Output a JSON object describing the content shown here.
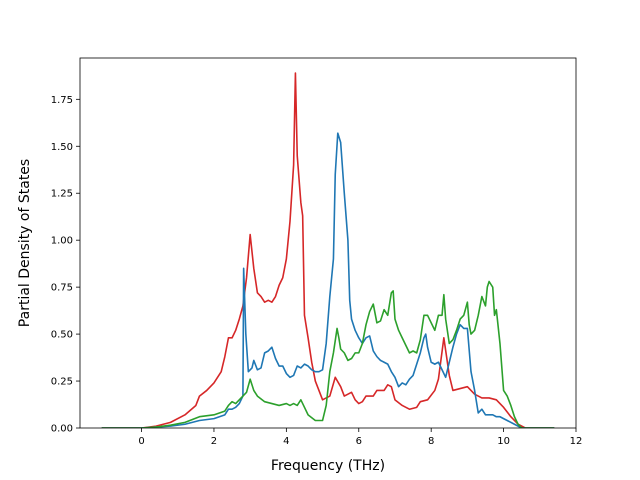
{
  "chart_data": {
    "type": "line",
    "title": "",
    "xlabel": "Frequency (THz)",
    "ylabel": "Partial Density of States",
    "xlim": [
      -1.7,
      12
    ],
    "ylim": [
      0,
      1.97
    ],
    "x_ticks": [
      0,
      2,
      4,
      6,
      8,
      10,
      12
    ],
    "x_tick_labels": [
      "0",
      "2",
      "4",
      "6",
      "8",
      "10",
      "12"
    ],
    "y_ticks": [
      0,
      0.25,
      0.5,
      0.75,
      1.0,
      1.25,
      1.5,
      1.75
    ],
    "y_tick_labels": [
      "0.00",
      "0.25",
      "0.50",
      "0.75",
      "1.00",
      "1.25",
      "1.50",
      "1.75"
    ],
    "grid": false,
    "legend": false,
    "series": [
      {
        "color": "#d62728",
        "points": [
          [
            -1.1,
            0
          ],
          [
            0,
            0
          ],
          [
            0.4,
            0.01
          ],
          [
            0.8,
            0.03
          ],
          [
            1.2,
            0.07
          ],
          [
            1.5,
            0.12
          ],
          [
            1.6,
            0.17
          ],
          [
            1.8,
            0.2
          ],
          [
            2.0,
            0.24
          ],
          [
            2.2,
            0.3
          ],
          [
            2.3,
            0.38
          ],
          [
            2.4,
            0.48
          ],
          [
            2.5,
            0.48
          ],
          [
            2.6,
            0.52
          ],
          [
            2.7,
            0.58
          ],
          [
            2.8,
            0.65
          ],
          [
            2.9,
            0.8
          ],
          [
            3.0,
            1.03
          ],
          [
            3.1,
            0.85
          ],
          [
            3.2,
            0.72
          ],
          [
            3.3,
            0.7
          ],
          [
            3.4,
            0.67
          ],
          [
            3.5,
            0.68
          ],
          [
            3.6,
            0.67
          ],
          [
            3.7,
            0.7
          ],
          [
            3.8,
            0.76
          ],
          [
            3.9,
            0.8
          ],
          [
            4.0,
            0.9
          ],
          [
            4.1,
            1.1
          ],
          [
            4.2,
            1.4
          ],
          [
            4.25,
            1.89
          ],
          [
            4.3,
            1.45
          ],
          [
            4.4,
            1.2
          ],
          [
            4.45,
            1.13
          ],
          [
            4.5,
            0.6
          ],
          [
            4.6,
            0.48
          ],
          [
            4.7,
            0.35
          ],
          [
            4.8,
            0.25
          ],
          [
            5.0,
            0.15
          ],
          [
            5.2,
            0.17
          ],
          [
            5.35,
            0.27
          ],
          [
            5.5,
            0.22
          ],
          [
            5.6,
            0.17
          ],
          [
            5.8,
            0.19
          ],
          [
            5.9,
            0.15
          ],
          [
            6.0,
            0.13
          ],
          [
            6.1,
            0.14
          ],
          [
            6.2,
            0.17
          ],
          [
            6.4,
            0.17
          ],
          [
            6.5,
            0.2
          ],
          [
            6.7,
            0.2
          ],
          [
            6.8,
            0.23
          ],
          [
            6.9,
            0.22
          ],
          [
            7.0,
            0.15
          ],
          [
            7.2,
            0.12
          ],
          [
            7.4,
            0.1
          ],
          [
            7.6,
            0.11
          ],
          [
            7.7,
            0.14
          ],
          [
            7.9,
            0.15
          ],
          [
            8.1,
            0.2
          ],
          [
            8.2,
            0.26
          ],
          [
            8.35,
            0.48
          ],
          [
            8.5,
            0.28
          ],
          [
            8.6,
            0.2
          ],
          [
            8.8,
            0.21
          ],
          [
            9.0,
            0.22
          ],
          [
            9.2,
            0.18
          ],
          [
            9.4,
            0.16
          ],
          [
            9.6,
            0.16
          ],
          [
            9.8,
            0.15
          ],
          [
            10.0,
            0.11
          ],
          [
            10.2,
            0.06
          ],
          [
            10.4,
            0.02
          ],
          [
            10.6,
            0
          ],
          [
            11.4,
            0
          ]
        ]
      },
      {
        "color": "#1f77b4",
        "points": [
          [
            -1.1,
            0
          ],
          [
            0,
            0
          ],
          [
            0.4,
            0.005
          ],
          [
            0.8,
            0.01
          ],
          [
            1.2,
            0.02
          ],
          [
            1.6,
            0.04
          ],
          [
            2.0,
            0.05
          ],
          [
            2.3,
            0.07
          ],
          [
            2.4,
            0.1
          ],
          [
            2.5,
            0.1
          ],
          [
            2.6,
            0.11
          ],
          [
            2.7,
            0.13
          ],
          [
            2.8,
            0.17
          ],
          [
            2.82,
            0.85
          ],
          [
            2.88,
            0.5
          ],
          [
            2.95,
            0.3
          ],
          [
            3.05,
            0.32
          ],
          [
            3.1,
            0.36
          ],
          [
            3.2,
            0.31
          ],
          [
            3.3,
            0.32
          ],
          [
            3.4,
            0.4
          ],
          [
            3.5,
            0.41
          ],
          [
            3.6,
            0.43
          ],
          [
            3.7,
            0.37
          ],
          [
            3.8,
            0.33
          ],
          [
            3.9,
            0.33
          ],
          [
            4.0,
            0.29
          ],
          [
            4.1,
            0.27
          ],
          [
            4.2,
            0.28
          ],
          [
            4.3,
            0.33
          ],
          [
            4.4,
            0.32
          ],
          [
            4.5,
            0.34
          ],
          [
            4.6,
            0.33
          ],
          [
            4.7,
            0.31
          ],
          [
            4.8,
            0.3
          ],
          [
            4.9,
            0.3
          ],
          [
            5.0,
            0.31
          ],
          [
            5.1,
            0.45
          ],
          [
            5.2,
            0.7
          ],
          [
            5.3,
            0.9
          ],
          [
            5.35,
            1.35
          ],
          [
            5.42,
            1.57
          ],
          [
            5.5,
            1.52
          ],
          [
            5.6,
            1.25
          ],
          [
            5.7,
            1.0
          ],
          [
            5.75,
            0.68
          ],
          [
            5.8,
            0.58
          ],
          [
            5.9,
            0.52
          ],
          [
            6.0,
            0.48
          ],
          [
            6.1,
            0.45
          ],
          [
            6.2,
            0.48
          ],
          [
            6.3,
            0.49
          ],
          [
            6.4,
            0.41
          ],
          [
            6.5,
            0.38
          ],
          [
            6.6,
            0.36
          ],
          [
            6.7,
            0.35
          ],
          [
            6.8,
            0.34
          ],
          [
            6.9,
            0.3
          ],
          [
            7.0,
            0.27
          ],
          [
            7.1,
            0.22
          ],
          [
            7.2,
            0.24
          ],
          [
            7.3,
            0.23
          ],
          [
            7.4,
            0.26
          ],
          [
            7.5,
            0.28
          ],
          [
            7.6,
            0.34
          ],
          [
            7.7,
            0.4
          ],
          [
            7.8,
            0.48
          ],
          [
            7.85,
            0.5
          ],
          [
            7.9,
            0.43
          ],
          [
            8.0,
            0.35
          ],
          [
            8.1,
            0.34
          ],
          [
            8.2,
            0.35
          ],
          [
            8.3,
            0.31
          ],
          [
            8.4,
            0.27
          ],
          [
            8.5,
            0.35
          ],
          [
            8.6,
            0.43
          ],
          [
            8.7,
            0.5
          ],
          [
            8.8,
            0.55
          ],
          [
            8.9,
            0.53
          ],
          [
            9.0,
            0.53
          ],
          [
            9.1,
            0.3
          ],
          [
            9.2,
            0.2
          ],
          [
            9.3,
            0.08
          ],
          [
            9.4,
            0.1
          ],
          [
            9.5,
            0.07
          ],
          [
            9.6,
            0.07
          ],
          [
            9.7,
            0.07
          ],
          [
            9.8,
            0.06
          ],
          [
            9.9,
            0.06
          ],
          [
            10.0,
            0.05
          ],
          [
            10.1,
            0.04
          ],
          [
            10.3,
            0.02
          ],
          [
            10.5,
            0
          ],
          [
            11.4,
            0
          ]
        ]
      },
      {
        "color": "#2ca02c",
        "points": [
          [
            -1.1,
            0
          ],
          [
            0,
            0
          ],
          [
            0.4,
            0.005
          ],
          [
            0.8,
            0.015
          ],
          [
            1.2,
            0.03
          ],
          [
            1.6,
            0.06
          ],
          [
            2.0,
            0.07
          ],
          [
            2.3,
            0.09
          ],
          [
            2.4,
            0.12
          ],
          [
            2.5,
            0.14
          ],
          [
            2.6,
            0.13
          ],
          [
            2.7,
            0.15
          ],
          [
            2.8,
            0.17
          ],
          [
            2.9,
            0.19
          ],
          [
            3.0,
            0.26
          ],
          [
            3.1,
            0.2
          ],
          [
            3.2,
            0.17
          ],
          [
            3.4,
            0.14
          ],
          [
            3.6,
            0.13
          ],
          [
            3.8,
            0.12
          ],
          [
            4.0,
            0.13
          ],
          [
            4.1,
            0.12
          ],
          [
            4.2,
            0.13
          ],
          [
            4.3,
            0.12
          ],
          [
            4.4,
            0.15
          ],
          [
            4.5,
            0.11
          ],
          [
            4.6,
            0.07
          ],
          [
            4.8,
            0.04
          ],
          [
            5.0,
            0.04
          ],
          [
            5.1,
            0.12
          ],
          [
            5.2,
            0.3
          ],
          [
            5.3,
            0.4
          ],
          [
            5.4,
            0.53
          ],
          [
            5.45,
            0.48
          ],
          [
            5.5,
            0.42
          ],
          [
            5.6,
            0.4
          ],
          [
            5.7,
            0.36
          ],
          [
            5.8,
            0.37
          ],
          [
            5.9,
            0.4
          ],
          [
            6.0,
            0.4
          ],
          [
            6.1,
            0.45
          ],
          [
            6.2,
            0.55
          ],
          [
            6.3,
            0.62
          ],
          [
            6.4,
            0.66
          ],
          [
            6.5,
            0.56
          ],
          [
            6.6,
            0.57
          ],
          [
            6.7,
            0.63
          ],
          [
            6.8,
            0.6
          ],
          [
            6.9,
            0.72
          ],
          [
            6.95,
            0.73
          ],
          [
            7.0,
            0.58
          ],
          [
            7.1,
            0.52
          ],
          [
            7.2,
            0.48
          ],
          [
            7.3,
            0.44
          ],
          [
            7.4,
            0.4
          ],
          [
            7.5,
            0.41
          ],
          [
            7.6,
            0.4
          ],
          [
            7.7,
            0.47
          ],
          [
            7.8,
            0.6
          ],
          [
            7.9,
            0.6
          ],
          [
            8.0,
            0.56
          ],
          [
            8.1,
            0.52
          ],
          [
            8.2,
            0.6
          ],
          [
            8.3,
            0.6
          ],
          [
            8.35,
            0.71
          ],
          [
            8.4,
            0.58
          ],
          [
            8.5,
            0.45
          ],
          [
            8.6,
            0.47
          ],
          [
            8.7,
            0.52
          ],
          [
            8.8,
            0.58
          ],
          [
            8.9,
            0.6
          ],
          [
            9.0,
            0.67
          ],
          [
            9.05,
            0.55
          ],
          [
            9.1,
            0.5
          ],
          [
            9.2,
            0.52
          ],
          [
            9.3,
            0.6
          ],
          [
            9.4,
            0.7
          ],
          [
            9.5,
            0.65
          ],
          [
            9.55,
            0.75
          ],
          [
            9.6,
            0.78
          ],
          [
            9.7,
            0.75
          ],
          [
            9.75,
            0.6
          ],
          [
            9.8,
            0.63
          ],
          [
            9.9,
            0.45
          ],
          [
            10.0,
            0.2
          ],
          [
            10.1,
            0.17
          ],
          [
            10.2,
            0.12
          ],
          [
            10.3,
            0.06
          ],
          [
            10.4,
            0.02
          ],
          [
            10.5,
            0
          ],
          [
            11.4,
            0
          ]
        ]
      }
    ]
  }
}
